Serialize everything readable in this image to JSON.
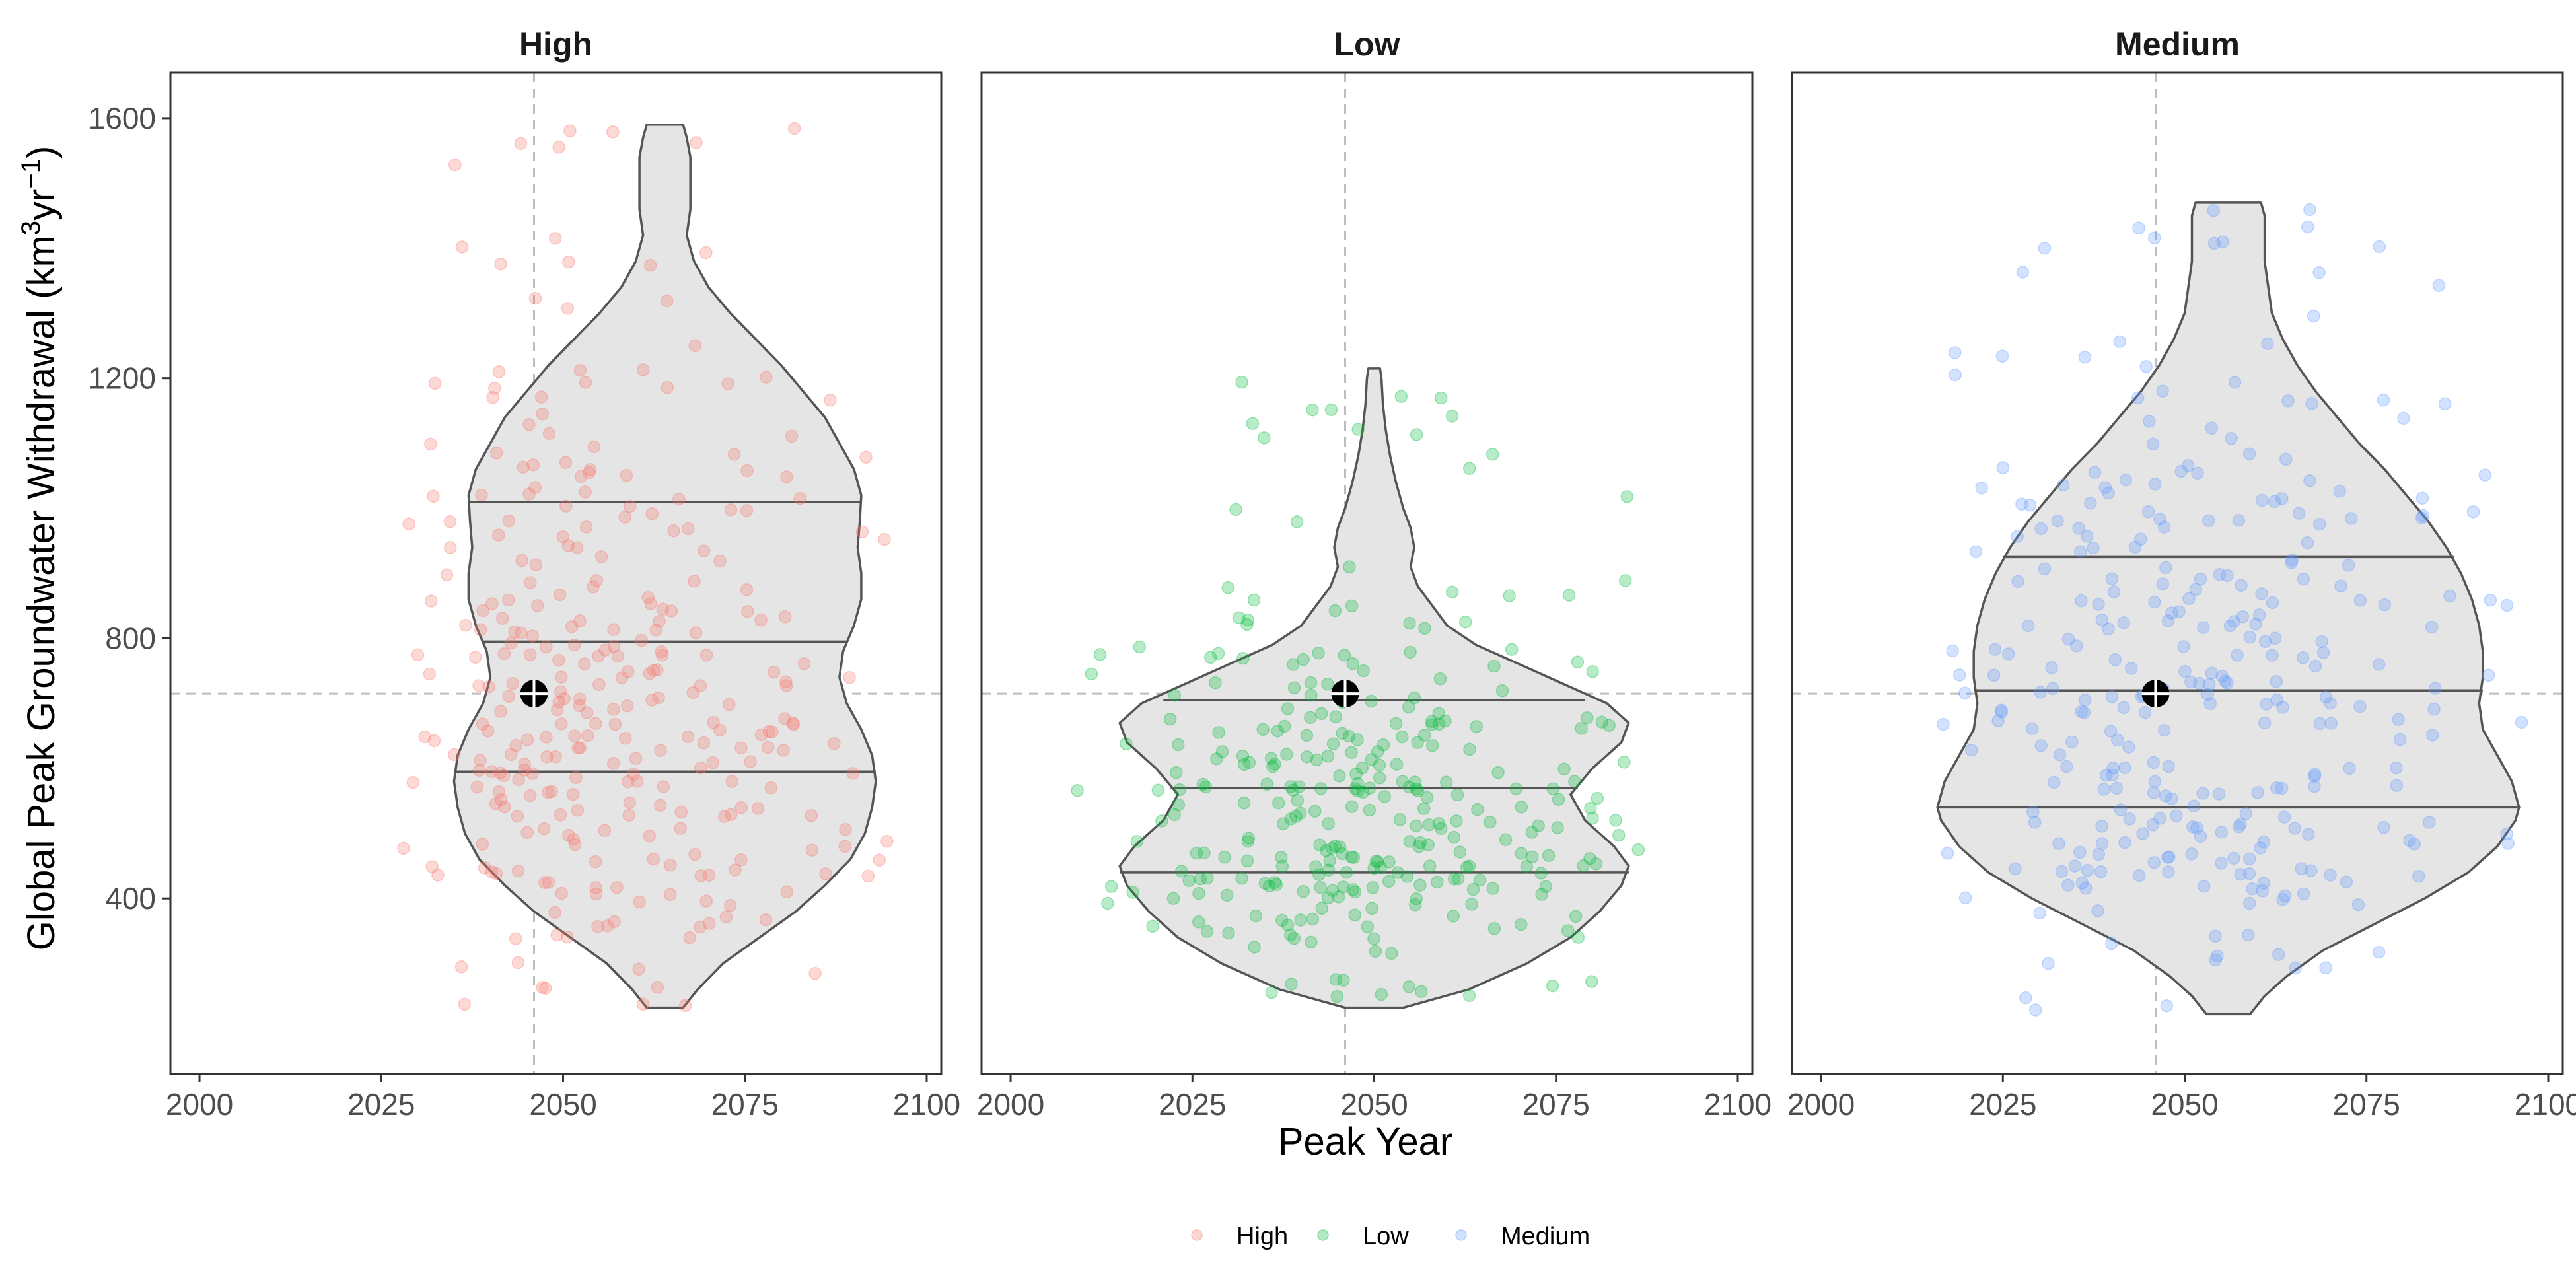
{
  "chart_data": {
    "type": "violin+scatter",
    "ylabel": "Global Peak Groundwater Withdrawal (km³yr⁻¹)",
    "xlabel": "Peak Year",
    "xlim": [
      1996,
      2102
    ],
    "ylim": [
      130,
      1670
    ],
    "xticks": [
      2000,
      2025,
      2050,
      2075,
      2100
    ],
    "yticks": [
      400,
      800,
      1200,
      1600
    ],
    "grid": false,
    "reference_lines": {
      "x": 2046,
      "y": 715
    },
    "marker": {
      "x": 2046,
      "y": 715
    },
    "colors": {
      "High": "#F8766D",
      "Low": "#00BA38",
      "Medium": "#619CFF",
      "violin_fill": "#E5E5E5",
      "violin_line": "#555555"
    },
    "legend": {
      "position": "bottom",
      "entries": [
        "High",
        "Low",
        "Medium"
      ]
    },
    "panels": [
      {
        "title": "High",
        "violin_center_x": 2064,
        "quantiles": [
          {
            "y": 595,
            "halfwidth": 29
          },
          {
            "y": 795,
            "halfwidth": 25
          },
          {
            "y": 1010,
            "halfwidth": 27
          }
        ],
        "violin_profile": [
          [
            232,
            2.5
          ],
          [
            260,
            4.5
          ],
          [
            300,
            8
          ],
          [
            340,
            13
          ],
          [
            380,
            18
          ],
          [
            420,
            22
          ],
          [
            460,
            25.5
          ],
          [
            500,
            27.5
          ],
          [
            540,
            28.5
          ],
          [
            580,
            29
          ],
          [
            620,
            28.5
          ],
          [
            660,
            27
          ],
          [
            700,
            25
          ],
          [
            740,
            24
          ],
          [
            780,
            24.5
          ],
          [
            820,
            26
          ],
          [
            860,
            27
          ],
          [
            900,
            27
          ],
          [
            940,
            26.5
          ],
          [
            980,
            26.8
          ],
          [
            1020,
            27
          ],
          [
            1060,
            26
          ],
          [
            1100,
            24
          ],
          [
            1140,
            22
          ],
          [
            1180,
            19
          ],
          [
            1220,
            16
          ],
          [
            1260,
            12.5
          ],
          [
            1300,
            9
          ],
          [
            1340,
            6
          ],
          [
            1380,
            4
          ],
          [
            1420,
            3
          ],
          [
            1460,
            3.5
          ],
          [
            1500,
            3.5
          ],
          [
            1540,
            3.5
          ],
          [
            1570,
            3
          ],
          [
            1590,
            2.5
          ]
        ],
        "points": {
          "x_range": [
            2027,
            2100
          ],
          "x_mode": 2046,
          "y_quantiles": [
            [
              0,
              232
            ],
            [
              0.05,
              355
            ],
            [
              0.1,
              420
            ],
            [
              0.2,
              500
            ],
            [
              0.3,
              570
            ],
            [
              0.4,
              630
            ],
            [
              0.5,
              700
            ],
            [
              0.6,
              780
            ],
            [
              0.7,
              870
            ],
            [
              0.8,
              960
            ],
            [
              0.9,
              1090
            ],
            [
              0.95,
              1230
            ],
            [
              1,
              1590
            ]
          ]
        }
      },
      {
        "title": "Low",
        "violin_center_x": 2050,
        "quantiles": [
          {
            "y": 440,
            "halfwidth": 35
          },
          {
            "y": 570,
            "halfwidth": 28
          },
          {
            "y": 705,
            "halfwidth": 29
          }
        ],
        "violin_profile": [
          [
            232,
            4
          ],
          [
            260,
            13
          ],
          [
            300,
            21
          ],
          [
            340,
            27
          ],
          [
            380,
            31
          ],
          [
            420,
            34
          ],
          [
            450,
            35
          ],
          [
            480,
            33
          ],
          [
            520,
            29
          ],
          [
            560,
            27
          ],
          [
            600,
            30
          ],
          [
            640,
            34
          ],
          [
            670,
            35
          ],
          [
            700,
            32
          ],
          [
            730,
            26
          ],
          [
            760,
            20
          ],
          [
            790,
            14
          ],
          [
            820,
            10
          ],
          [
            850,
            8
          ],
          [
            880,
            6
          ],
          [
            910,
            5
          ],
          [
            940,
            5.5
          ],
          [
            970,
            5
          ],
          [
            1000,
            4
          ],
          [
            1040,
            3
          ],
          [
            1080,
            2.2
          ],
          [
            1120,
            1.6
          ],
          [
            1160,
            1.2
          ],
          [
            1200,
            1
          ],
          [
            1215,
            0.8
          ]
        ],
        "points": {
          "x_range": [
            2007,
            2090
          ],
          "x_mode": 2049,
          "y_quantiles": [
            [
              0,
              232
            ],
            [
              0.05,
              320
            ],
            [
              0.1,
              360
            ],
            [
              0.2,
              410
            ],
            [
              0.3,
              450
            ],
            [
              0.4,
              490
            ],
            [
              0.5,
              535
            ],
            [
              0.6,
              580
            ],
            [
              0.7,
              630
            ],
            [
              0.8,
              690
            ],
            [
              0.9,
              790
            ],
            [
              0.95,
              880
            ],
            [
              1,
              1215
            ]
          ]
        }
      },
      {
        "title": "Medium",
        "violin_center_x": 2056,
        "quantiles": [
          {
            "y": 540,
            "halfwidth": 40
          },
          {
            "y": 720,
            "halfwidth": 35
          },
          {
            "y": 925,
            "halfwidth": 31
          }
        ],
        "violin_profile": [
          [
            222,
            3
          ],
          [
            250,
            5
          ],
          [
            280,
            8
          ],
          [
            320,
            13
          ],
          [
            360,
            20
          ],
          [
            400,
            27
          ],
          [
            440,
            33
          ],
          [
            480,
            37
          ],
          [
            520,
            39.5
          ],
          [
            540,
            40
          ],
          [
            580,
            39
          ],
          [
            620,
            37
          ],
          [
            660,
            35
          ],
          [
            700,
            34.5
          ],
          [
            740,
            35
          ],
          [
            780,
            35
          ],
          [
            820,
            34.5
          ],
          [
            860,
            33.5
          ],
          [
            900,
            32
          ],
          [
            940,
            30
          ],
          [
            980,
            27.5
          ],
          [
            1020,
            24.5
          ],
          [
            1060,
            21.5
          ],
          [
            1100,
            18
          ],
          [
            1140,
            15
          ],
          [
            1180,
            12
          ],
          [
            1220,
            9.5
          ],
          [
            1260,
            7.5
          ],
          [
            1300,
            6
          ],
          [
            1340,
            5.5
          ],
          [
            1380,
            5
          ],
          [
            1420,
            5
          ],
          [
            1450,
            5
          ],
          [
            1470,
            4.5
          ]
        ],
        "points": {
          "x_range": [
            2011,
            2100
          ],
          "x_mode": 2049,
          "y_quantiles": [
            [
              0,
              222
            ],
            [
              0.05,
              360
            ],
            [
              0.1,
              420
            ],
            [
              0.2,
              490
            ],
            [
              0.3,
              560
            ],
            [
              0.4,
              630
            ],
            [
              0.5,
              700
            ],
            [
              0.6,
              770
            ],
            [
              0.7,
              850
            ],
            [
              0.8,
              940
            ],
            [
              0.9,
              1060
            ],
            [
              0.95,
              1180
            ],
            [
              1,
              1470
            ]
          ]
        }
      }
    ]
  }
}
